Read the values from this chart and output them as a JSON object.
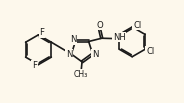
{
  "bg_color": "#fdf8ec",
  "bond_color": "#1a1a1a",
  "lw": 1.2,
  "fig_width": 1.84,
  "fig_height": 1.03,
  "dpi": 100,
  "xlim": [
    0,
    10
  ],
  "ylim": [
    0,
    5.6
  ]
}
